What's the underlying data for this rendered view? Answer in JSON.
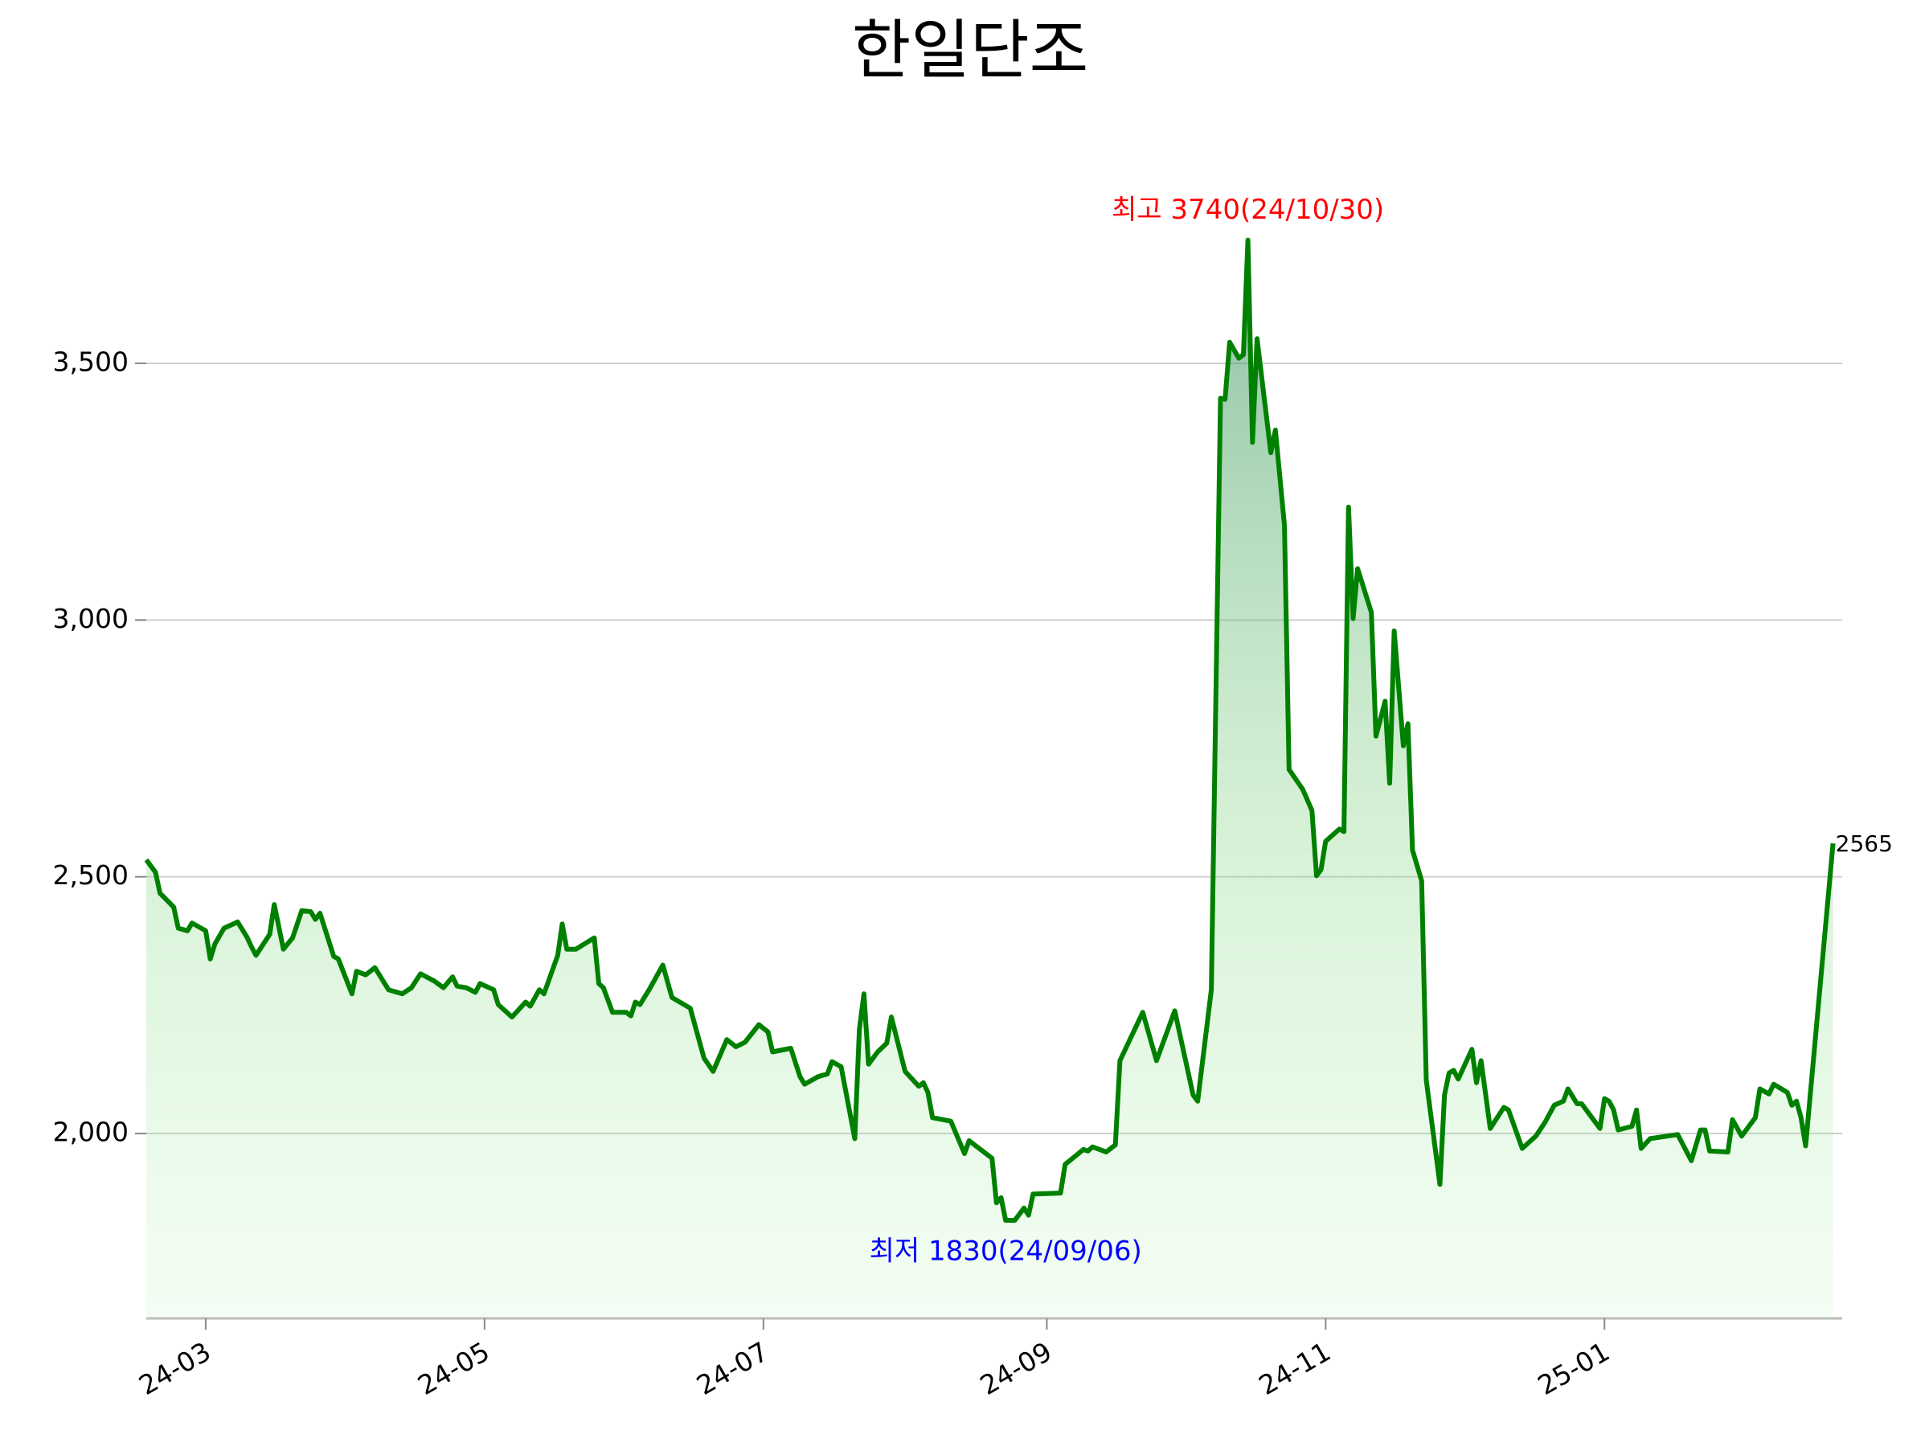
{
  "chart_data": {
    "type": "line",
    "title": "한일단조",
    "x": [
      47,
      49,
      50,
      53,
      54,
      56,
      57,
      60,
      61,
      62,
      64,
      67,
      69,
      70,
      71,
      74,
      75,
      77,
      79,
      81,
      83,
      84,
      85,
      88,
      89,
      92,
      93,
      95,
      97,
      100,
      103,
      105,
      107,
      110,
      112,
      114,
      115,
      117,
      119,
      120,
      123,
      124,
      127,
      130,
      131,
      133,
      134,
      137,
      138,
      139,
      141,
      145,
      146,
      147,
      149,
      152,
      153,
      154,
      155,
      157,
      160,
      162,
      166,
      169,
      171,
      174,
      176,
      178,
      181,
      183,
      184,
      188,
      190,
      191,
      194,
      196,
      197,
      199,
      202,
      203,
      204,
      205,
      207,
      209,
      210,
      213,
      216,
      217,
      218,
      219,
      223,
      226,
      227,
      232,
      233,
      234,
      235,
      237,
      239,
      240,
      241,
      247,
      248,
      252,
      253,
      254,
      257,
      259,
      260,
      265,
      268,
      272,
      276,
      277,
      280,
      282,
      283,
      284,
      286,
      287,
      288,
      289,
      290,
      293,
      294,
      296,
      297,
      300,
      302,
      303,
      304,
      305,
      308,
      309,
      310,
      311,
      312,
      315,
      316,
      318,
      319,
      320,
      322,
      323,
      324,
      326,
      327,
      330,
      331,
      332,
      333,
      334,
      337,
      338,
      339,
      341,
      344,
      345,
      348,
      351,
      353,
      355,
      357,
      358,
      360,
      361,
      365,
      366,
      367,
      368,
      369,
      372,
      373,
      374,
      376,
      382,
      385,
      387,
      388,
      389,
      393,
      394,
      396,
      399,
      400,
      402,
      403,
      406,
      407,
      408,
      409,
      410,
      416
    ],
    "series": [
      {
        "name": "한일단조",
        "color": "#008000",
        "values": [
          2533,
          2509,
          2468,
          2441,
          2400,
          2395,
          2410,
          2395,
          2340,
          2369,
          2400,
          2412,
          2383,
          2364,
          2347,
          2388,
          2446,
          2359,
          2381,
          2434,
          2432,
          2417,
          2429,
          2345,
          2340,
          2272,
          2316,
          2309,
          2323,
          2280,
          2272,
          2284,
          2311,
          2297,
          2284,
          2305,
          2287,
          2284,
          2275,
          2292,
          2280,
          2251,
          2227,
          2256,
          2248,
          2280,
          2272,
          2347,
          2408,
          2359,
          2359,
          2381,
          2292,
          2284,
          2236,
          2236,
          2229,
          2256,
          2251,
          2280,
          2328,
          2265,
          2244,
          2147,
          2121,
          2183,
          2169,
          2178,
          2212,
          2198,
          2159,
          2166,
          2111,
          2096,
          2111,
          2116,
          2140,
          2130,
          1990,
          2203,
          2272,
          2135,
          2159,
          2176,
          2227,
          2121,
          2092,
          2099,
          2080,
          2031,
          2024,
          1961,
          1986,
          1952,
          1865,
          1875,
          1831,
          1831,
          1855,
          1841,
          1882,
          1884,
          1940,
          1969,
          1966,
          1974,
          1964,
          1978,
          2142,
          2236,
          2142,
          2239,
          2075,
          2063,
          2280,
          3432,
          3430,
          3541,
          3510,
          3517,
          3740,
          3346,
          3548,
          3326,
          3370,
          3184,
          2709,
          2670,
          2629,
          2502,
          2514,
          2569,
          2593,
          2588,
          3220,
          3003,
          3100,
          3015,
          2774,
          2842,
          2682,
          2979,
          2755,
          2798,
          2552,
          2492,
          2104,
          1901,
          2075,
          2118,
          2123,
          2106,
          2164,
          2099,
          2142,
          2010,
          2051,
          2046,
          1971,
          1995,
          2022,
          2055,
          2063,
          2087,
          2058,
          2058,
          2010,
          2068,
          2063,
          2046,
          2007,
          2014,
          2046,
          1971,
          1990,
          1998,
          1947,
          2007,
          2007,
          1966,
          1964,
          2027,
          1995,
          2031,
          2087,
          2077,
          2096,
          2080,
          2055,
          2063,
          2031,
          1976,
          2565
        ]
      }
    ],
    "xlim": [
      47,
      418
    ],
    "xticks": [
      {
        "value": 60,
        "label": "24-03"
      },
      {
        "value": 121,
        "label": "24-05"
      },
      {
        "value": 182,
        "label": "24-07"
      },
      {
        "value": 244,
        "label": "24-09"
      },
      {
        "value": 305,
        "label": "24-11"
      },
      {
        "value": 366,
        "label": "25-01"
      }
    ],
    "ylim": [
      1640,
      3860
    ],
    "yticks": [
      {
        "value": 2000,
        "label": "2,000"
      },
      {
        "value": 2500,
        "label": "2,500"
      },
      {
        "value": 3000,
        "label": "3,000"
      },
      {
        "value": 3500,
        "label": "3,500"
      }
    ],
    "grid": true,
    "annotations": [
      {
        "text": "최고 3740(24/10/30)",
        "color": "#ff0000"
      },
      {
        "text": "최저 1830(24/09/06)",
        "color": "#0000ff"
      }
    ]
  }
}
